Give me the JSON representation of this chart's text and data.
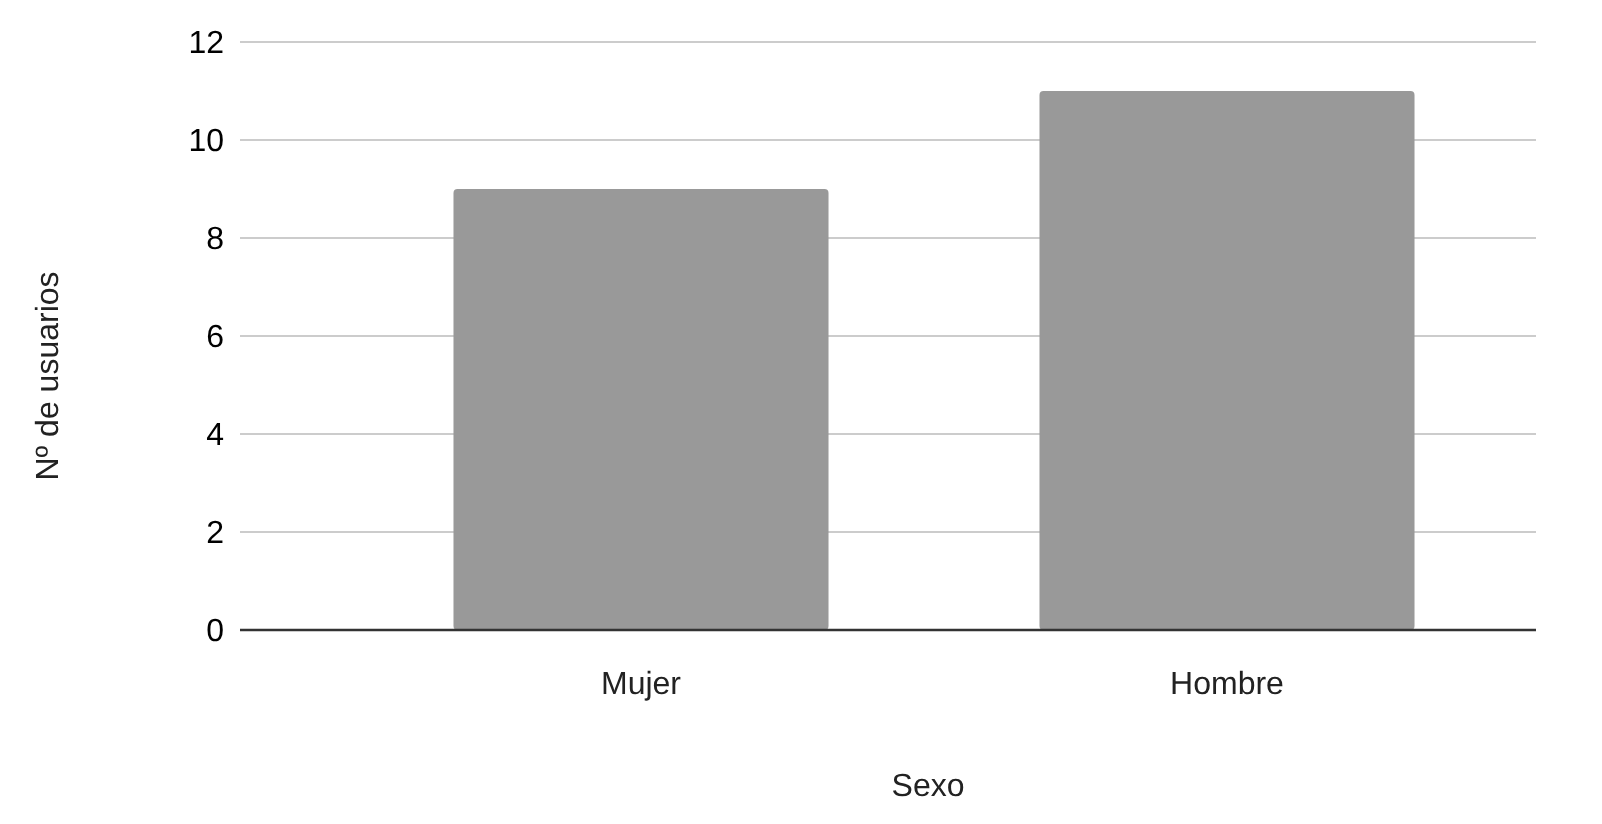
{
  "chart_data": {
    "type": "bar",
    "xlabel": "Sexo",
    "ylabel": "Nº de usuarios",
    "categories": [
      "Mujer",
      "Hombre"
    ],
    "values": [
      9,
      11
    ],
    "color": "#999999",
    "ylim": [
      0,
      12
    ],
    "yticks": [
      0,
      2,
      4,
      6,
      8,
      10,
      12
    ],
    "grid": "y"
  }
}
